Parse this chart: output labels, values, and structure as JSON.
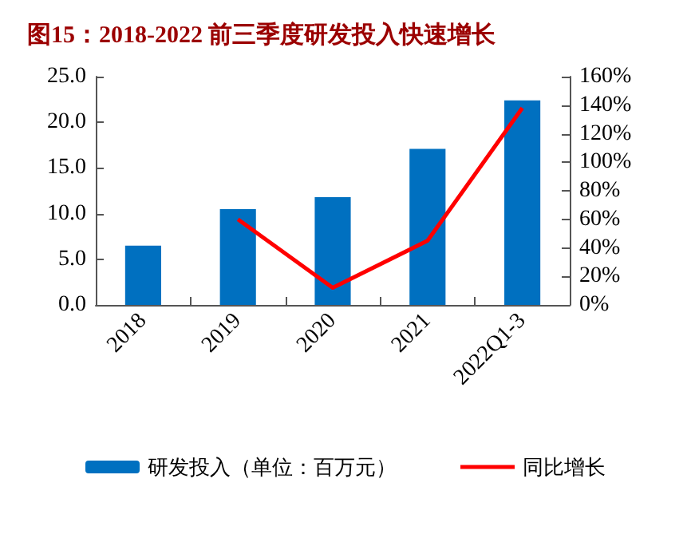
{
  "chart_data": {
    "type": "bar",
    "title": "图15：2018-2022 前三季度研发投入快速增长",
    "categories": [
      "2018",
      "2019",
      "2020",
      "2021",
      "2022Q1-3"
    ],
    "series": [
      {
        "name": "研发投入（单位：百万元）",
        "color": "#0070c0",
        "values": [
          6.5,
          10.5,
          11.8,
          17.1,
          22.4
        ]
      },
      {
        "name": "同比增长",
        "type": "line",
        "axis": "y2",
        "color": "#ff0000",
        "marker": "none",
        "values": [
          null,
          60,
          12,
          45,
          138
        ]
      }
    ],
    "ylim": [
      0,
      25
    ],
    "yticks": [
      {
        "value": 0,
        "label": "0.0"
      },
      {
        "value": 5,
        "label": "5.0"
      },
      {
        "value": 10,
        "label": "10.0"
      },
      {
        "value": 15,
        "label": "15.0"
      },
      {
        "value": 20,
        "label": "20.0"
      },
      {
        "value": 25,
        "label": "25.0"
      }
    ],
    "y2lim": [
      0,
      160
    ],
    "y2ticks": [
      {
        "value": 0,
        "label": "0%"
      },
      {
        "value": 20,
        "label": "20%"
      },
      {
        "value": 40,
        "label": "40%"
      },
      {
        "value": 60,
        "label": "60%"
      },
      {
        "value": 80,
        "label": "80%"
      },
      {
        "value": 100,
        "label": "100%"
      },
      {
        "value": 120,
        "label": "120%"
      },
      {
        "value": 140,
        "label": "140%"
      },
      {
        "value": 160,
        "label": "160%"
      }
    ],
    "legend": "bottom",
    "grid": false
  }
}
